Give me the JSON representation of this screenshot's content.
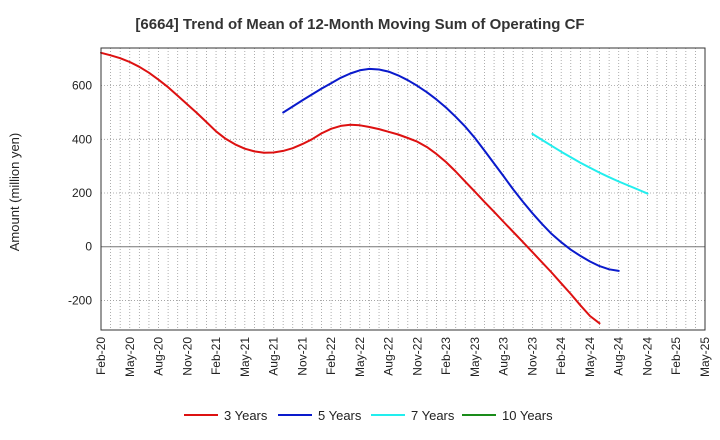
{
  "chart_data": {
    "type": "line",
    "title": "[6664]  Trend of Mean of 12-Month Moving Sum of Operating CF",
    "xlabel": "",
    "ylabel": "Amount (million yen)",
    "ylim": [
      -310,
      740
    ],
    "yticks": [
      -200,
      0,
      200,
      400,
      600
    ],
    "ytick_labels": [
      "-200",
      "0",
      "200",
      "400",
      "600"
    ],
    "x_start": "Feb-20",
    "x_end": "May-25",
    "xtick_labels": [
      "Feb-20",
      "May-20",
      "Aug-20",
      "Nov-20",
      "Feb-21",
      "May-21",
      "Aug-21",
      "Nov-21",
      "Feb-22",
      "May-22",
      "Aug-22",
      "Nov-22",
      "Feb-23",
      "May-23",
      "Aug-23",
      "Nov-23",
      "Feb-24",
      "May-24",
      "Aug-24",
      "Nov-24",
      "Feb-25",
      "May-25"
    ],
    "grid": true,
    "legend_position": "bottom",
    "series": [
      {
        "name": "3 Years",
        "color": "#dd1111",
        "start_index": 0,
        "values": [
          722,
          713,
          702,
          688,
          670,
          648,
          622,
          594,
          562,
          530,
          498,
          464,
          430,
          402,
          381,
          365,
          355,
          350,
          351,
          357,
          367,
          382,
          400,
          422,
          439,
          450,
          454,
          452,
          446,
          438,
          428,
          418,
          405,
          391,
          371,
          345,
          315,
          280,
          242,
          205,
          167,
          130,
          92,
          55,
          18,
          -20,
          -58,
          -96,
          -136,
          -176,
          -218,
          -258,
          -285
        ]
      },
      {
        "name": "5 Years",
        "color": "#0a1acc",
        "start_index": 19,
        "values": [
          500,
          522,
          545,
          567,
          589,
          609,
          629,
          645,
          657,
          662,
          660,
          652,
          638,
          620,
          599,
          575,
          548,
          518,
          484,
          447,
          405,
          358,
          310,
          262,
          213,
          168,
          125,
          85,
          48,
          17,
          -11,
          -34,
          -55,
          -72,
          -84,
          -90
        ]
      },
      {
        "name": "7 Years",
        "color": "#22eeee",
        "start_index": 45,
        "values": [
          420,
          398,
          376,
          354,
          333,
          313,
          294,
          276,
          259,
          243,
          228,
          213,
          198
        ]
      },
      {
        "name": "10 Years",
        "color": "#1a8c1a",
        "start_index": 0,
        "values": []
      }
    ]
  }
}
